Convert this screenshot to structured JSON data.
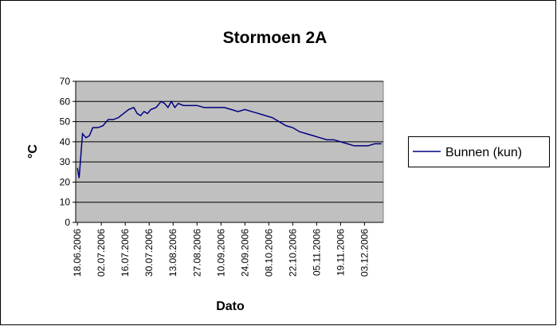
{
  "chart_data": {
    "type": "line",
    "title": "Stormoen 2A",
    "x_label": "Dato",
    "y_label": "°C",
    "x": [
      "18.06.2006",
      "19.06.2006",
      "21.06.2006",
      "23.06.2006",
      "25.06.2006",
      "27.06.2006",
      "30.06.2006",
      "03.07.2006",
      "06.07.2006",
      "09.07.2006",
      "12.07.2006",
      "15.07.2006",
      "18.07.2006",
      "21.07.2006",
      "23.07.2006",
      "25.07.2006",
      "27.07.2006",
      "29.07.2006",
      "31.07.2006",
      "03.08.2006",
      "06.08.2006",
      "08.08.2006",
      "10.08.2006",
      "12.08.2006",
      "14.08.2006",
      "16.08.2006",
      "19.08.2006",
      "23.08.2006",
      "27.08.2006",
      "31.08.2006",
      "04.09.2006",
      "08.09.2006",
      "12.09.2006",
      "16.09.2006",
      "20.09.2006",
      "24.09.2006",
      "28.09.2006",
      "02.10.2006",
      "06.10.2006",
      "10.10.2006",
      "14.10.2006",
      "18.10.2006",
      "22.10.2006",
      "26.10.2006",
      "30.10.2006",
      "03.11.2006",
      "07.11.2006",
      "11.11.2006",
      "15.11.2006",
      "19.11.2006",
      "23.11.2006",
      "27.11.2006",
      "01.12.2006",
      "05.12.2006",
      "09.12.2006",
      "13.12.2006"
    ],
    "series": [
      {
        "name": "Bunnen (kun)",
        "color": "#000080",
        "values": [
          27,
          22,
          44,
          42,
          43,
          47,
          47,
          48,
          51,
          51,
          52,
          54,
          56,
          57,
          54,
          53,
          55,
          54,
          56,
          57,
          60,
          59,
          57,
          60,
          57,
          59,
          58,
          58,
          58,
          57,
          57,
          57,
          57,
          56,
          55,
          56,
          55,
          54,
          53,
          52,
          50,
          48,
          47,
          45,
          44,
          43,
          42,
          41,
          41,
          40,
          39,
          38,
          38,
          38,
          39,
          39
        ]
      }
    ],
    "xlim": [
      "17.06.2006",
      "14.12.2006"
    ],
    "xticks": [
      "18.06.2006",
      "02.07.2006",
      "16.07.2006",
      "30.07.2006",
      "13.08.2006",
      "27.08.2006",
      "10.09.2006",
      "24.09.2006",
      "08.10.2006",
      "22.10.2006",
      "05.11.2006",
      "19.11.2006",
      "03.12.2006"
    ],
    "ylim": [
      0,
      70
    ],
    "yticks": [
      0,
      10,
      20,
      30,
      40,
      50,
      60,
      70
    ],
    "grid": true,
    "legend": "right",
    "plot_background": "#c0c0c0"
  }
}
